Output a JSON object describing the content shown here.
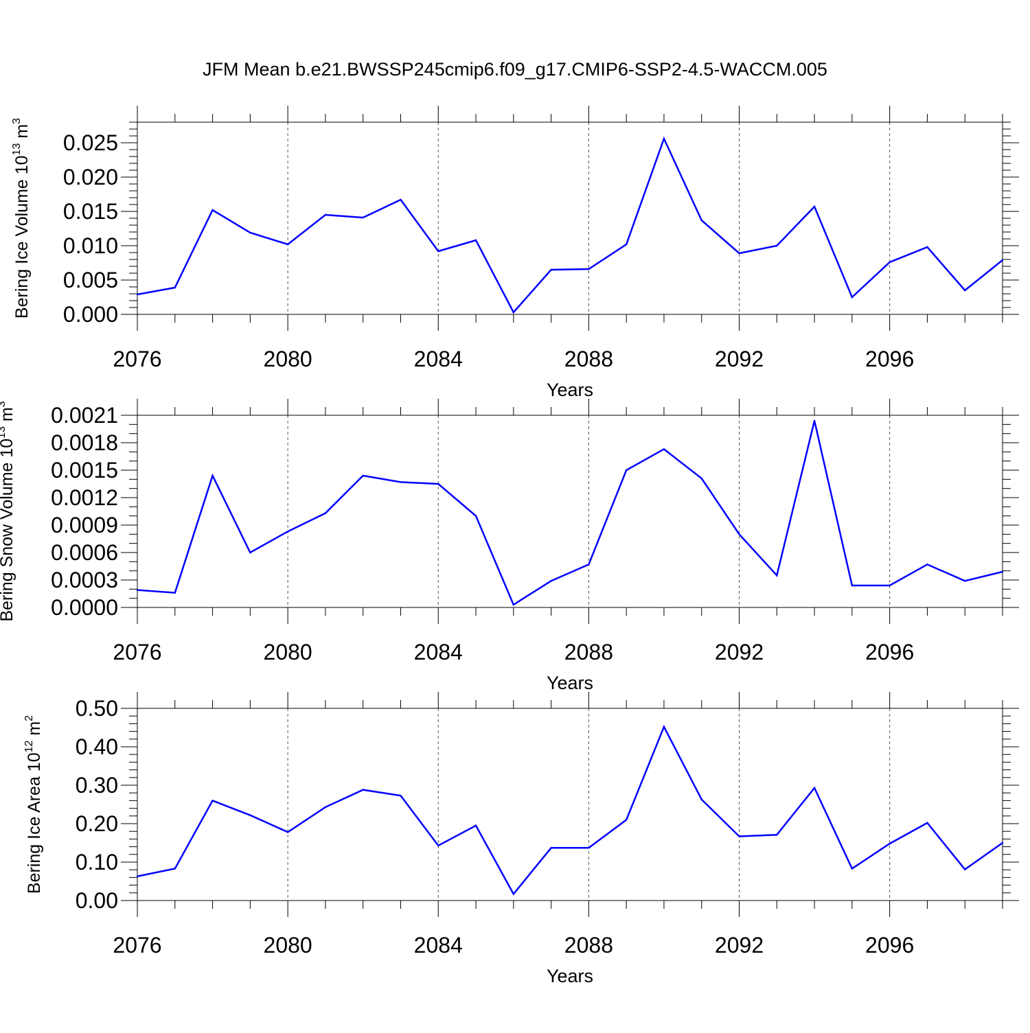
{
  "title": "JFM Mean b.e21.BWSSP245cmip6.f09_g17.CMIP6-SSP2-4.5-WACCM.005",
  "line_color": "#0000ff",
  "chart_data": [
    {
      "type": "line",
      "ylabel": "Bering Ice Volume 10",
      "ylabel_sup1": "13",
      "ylabel_unit": " m",
      "ylabel_sup2": "3",
      "xlabel": "Years",
      "x": [
        2076,
        2077,
        2078,
        2079,
        2080,
        2081,
        2082,
        2083,
        2084,
        2085,
        2086,
        2087,
        2088,
        2089,
        2090,
        2091,
        2092,
        2093,
        2094,
        2095,
        2096,
        2097,
        2098,
        2099
      ],
      "values": [
        0.0029,
        0.0039,
        0.0152,
        0.0119,
        0.0102,
        0.0145,
        0.0141,
        0.0167,
        0.0092,
        0.0108,
        0.0003,
        0.0065,
        0.0066,
        0.0102,
        0.0256,
        0.0137,
        0.0089,
        0.01,
        0.0157,
        0.0025,
        0.0076,
        0.0098,
        0.0035,
        0.0079
      ],
      "xlim": [
        2076,
        2099
      ],
      "ylim": [
        0,
        0.028
      ],
      "xticks": [
        "2076",
        "2080",
        "2084",
        "2088",
        "2092",
        "2096"
      ],
      "yticks": [
        "0.000",
        "0.005",
        "0.010",
        "0.015",
        "0.020",
        "0.025"
      ],
      "ytick_values": [
        0,
        0.005,
        0.01,
        0.015,
        0.02,
        0.025
      ],
      "y_minor_step": 0.001,
      "grid": "vertical dashed at major x ticks"
    },
    {
      "type": "line",
      "ylabel": "Bering Snow Volume 10",
      "ylabel_sup1": "13",
      "ylabel_unit": " m",
      "ylabel_sup2": "3",
      "xlabel": "Years",
      "x": [
        2076,
        2077,
        2078,
        2079,
        2080,
        2081,
        2082,
        2083,
        2084,
        2085,
        2086,
        2087,
        2088,
        2089,
        2090,
        2091,
        2092,
        2093,
        2094,
        2095,
        2096,
        2097,
        2098,
        2099
      ],
      "values": [
        0.00019,
        0.00016,
        0.00144,
        0.0006,
        0.00083,
        0.00103,
        0.00144,
        0.00137,
        0.00135,
        0.001,
        3e-05,
        0.00029,
        0.00047,
        0.0015,
        0.00173,
        0.00141,
        0.0008,
        0.00035,
        0.00204,
        0.00024,
        0.00024,
        0.00047,
        0.00029,
        0.00039
      ],
      "xlim": [
        2076,
        2099
      ],
      "ylim": [
        0,
        0.0021
      ],
      "xticks": [
        "2076",
        "2080",
        "2084",
        "2088",
        "2092",
        "2096"
      ],
      "yticks": [
        "0.0000",
        "0.0003",
        "0.0006",
        "0.0009",
        "0.0012",
        "0.0015",
        "0.0018",
        "0.0021"
      ],
      "ytick_values": [
        0,
        0.0003,
        0.0006,
        0.0009,
        0.0012,
        0.0015,
        0.0018,
        0.0021
      ],
      "y_minor_step": 0.0001,
      "grid": "vertical dashed at major x ticks"
    },
    {
      "type": "line",
      "ylabel": "Bering Ice Area 10",
      "ylabel_sup1": "12",
      "ylabel_unit": " m",
      "ylabel_sup2": "2",
      "xlabel": "Years",
      "x": [
        2076,
        2077,
        2078,
        2079,
        2080,
        2081,
        2082,
        2083,
        2084,
        2085,
        2086,
        2087,
        2088,
        2089,
        2090,
        2091,
        2092,
        2093,
        2094,
        2095,
        2096,
        2097,
        2098,
        2099
      ],
      "values": [
        0.063,
        0.083,
        0.26,
        0.222,
        0.178,
        0.243,
        0.288,
        0.273,
        0.143,
        0.195,
        0.017,
        0.137,
        0.137,
        0.21,
        0.452,
        0.263,
        0.167,
        0.171,
        0.293,
        0.083,
        0.148,
        0.202,
        0.081,
        0.15
      ],
      "xlim": [
        2076,
        2099
      ],
      "ylim": [
        0,
        0.5
      ],
      "xticks": [
        "2076",
        "2080",
        "2084",
        "2088",
        "2092",
        "2096"
      ],
      "yticks": [
        "0.00",
        "0.10",
        "0.20",
        "0.30",
        "0.40",
        "0.50"
      ],
      "ytick_values": [
        0,
        0.1,
        0.2,
        0.3,
        0.4,
        0.5
      ],
      "y_minor_step": 0.02,
      "grid": "vertical dashed at major x ticks"
    }
  ]
}
